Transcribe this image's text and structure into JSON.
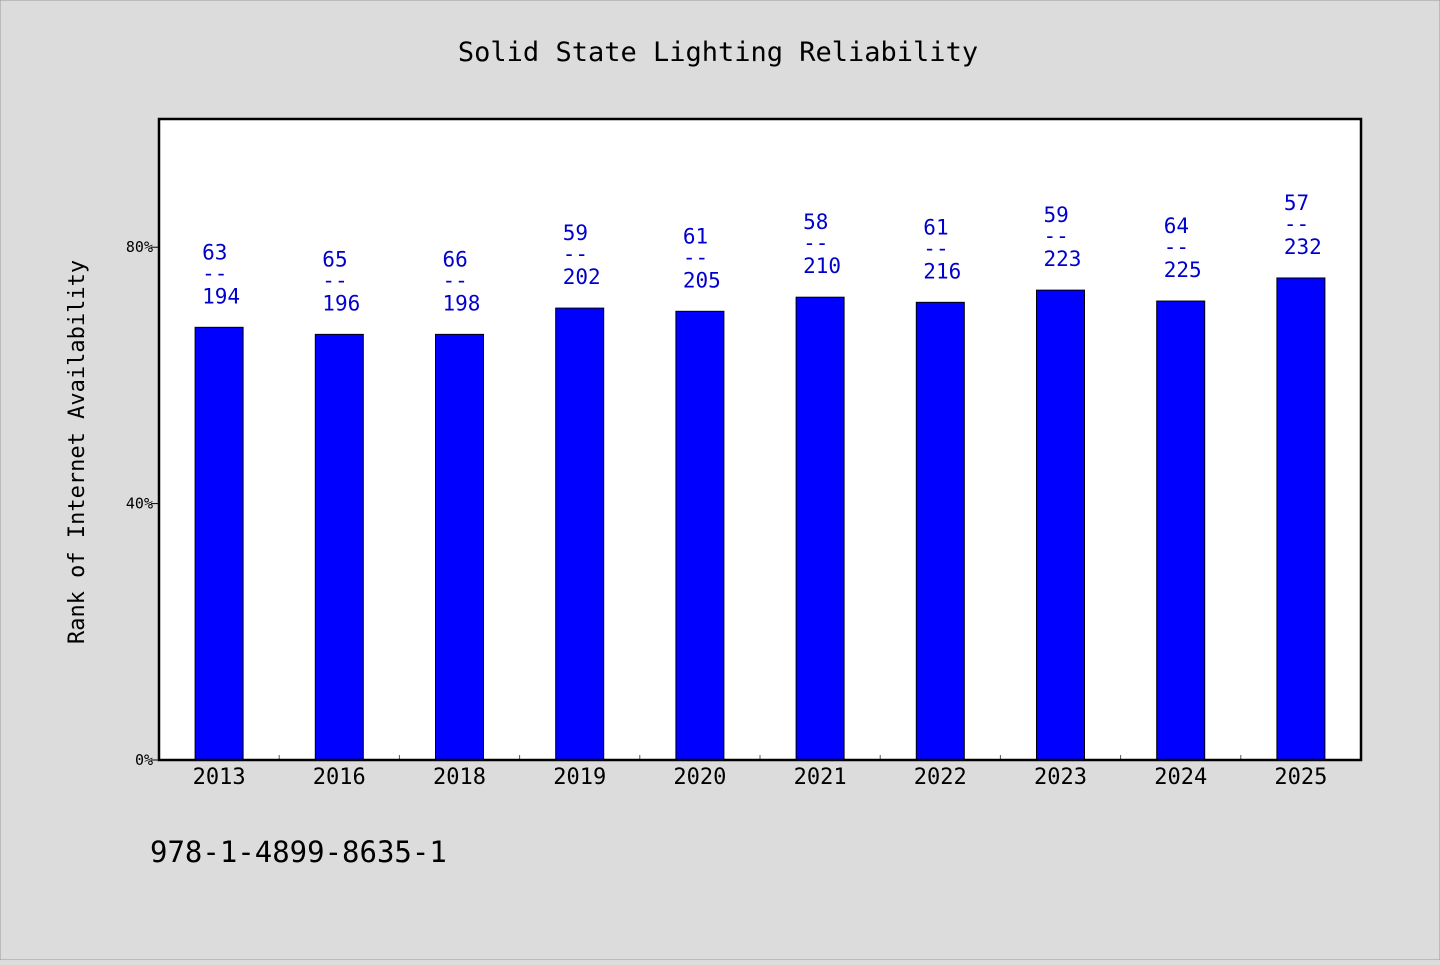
{
  "chart_data": {
    "type": "bar",
    "title": "Solid State Lighting Reliability",
    "xlabel": "",
    "ylabel": "Rank of Internet Availability",
    "categories": [
      "2013",
      "2016",
      "2018",
      "2019",
      "2020",
      "2021",
      "2022",
      "2023",
      "2024",
      "2025"
    ],
    "values": [
      67.5,
      66.4,
      66.4,
      70.5,
      70.0,
      72.2,
      71.4,
      73.3,
      71.6,
      75.2
    ],
    "data_labels": [
      {
        "top": "63",
        "sep": "--",
        "bottom": "194"
      },
      {
        "top": "65",
        "sep": "--",
        "bottom": "196"
      },
      {
        "top": "66",
        "sep": "--",
        "bottom": "198"
      },
      {
        "top": "59",
        "sep": "--",
        "bottom": "202"
      },
      {
        "top": "61",
        "sep": "--",
        "bottom": "205"
      },
      {
        "top": "58",
        "sep": "--",
        "bottom": "210"
      },
      {
        "top": "61",
        "sep": "--",
        "bottom": "216"
      },
      {
        "top": "59",
        "sep": "--",
        "bottom": "223"
      },
      {
        "top": "64",
        "sep": "--",
        "bottom": "225"
      },
      {
        "top": "57",
        "sep": "--",
        "bottom": "232"
      }
    ],
    "ylim": [
      0,
      100
    ],
    "yticks": [
      {
        "value": 0,
        "label": "0%"
      },
      {
        "value": 40,
        "label": "40%"
      },
      {
        "value": 80,
        "label": "80%"
      }
    ],
    "grid": false,
    "legend": "none",
    "colors": {
      "bar": "#0000ff",
      "label": "#0000cc",
      "background": "#dcdcdc",
      "plot_background": "#ffffff"
    }
  },
  "footer": {
    "identifier": "978-1-4899-8635-1"
  }
}
